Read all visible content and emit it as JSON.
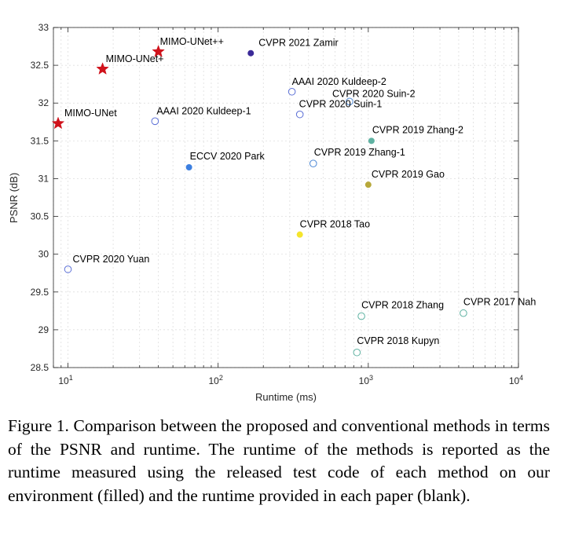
{
  "chart_data": {
    "type": "scatter",
    "xlabel": "Runtime (ms)",
    "ylabel": "PSNR (dB)",
    "xscale": "log",
    "xlim": [
      8,
      10000
    ],
    "ylim": [
      28.5,
      33
    ],
    "yticks": [
      "28.5",
      "29",
      "29.5",
      "30",
      "30.5",
      "31",
      "31.5",
      "32",
      "32.5",
      "33"
    ],
    "xticks": [
      {
        "base": "10",
        "exp": "1",
        "value": 10
      },
      {
        "base": "10",
        "exp": "2",
        "value": 100
      },
      {
        "base": "10",
        "exp": "3",
        "value": 1000
      },
      {
        "base": "10",
        "exp": "4",
        "value": 10000
      }
    ],
    "grid": "minor-dashed",
    "points": [
      {
        "label": "MIMO-UNet",
        "x": 8.6,
        "y": 31.73,
        "marker": "star",
        "color": "#d0121b"
      },
      {
        "label": "MIMO-UNet+",
        "x": 17,
        "y": 32.45,
        "marker": "star",
        "color": "#d0121b"
      },
      {
        "label": "MIMO-UNet++",
        "x": 40,
        "y": 32.68,
        "marker": "star",
        "color": "#d0121b"
      },
      {
        "label": "CVPR 2021 Zamir",
        "x": 165,
        "y": 32.66,
        "marker": "filled",
        "color": "#3b2a98"
      },
      {
        "label": "AAAI 2020 Kuldeep-2",
        "x": 310,
        "y": 32.15,
        "marker": "open",
        "color": "#5b6fd6"
      },
      {
        "label": "CVPR 2020 Suin-2",
        "x": 750,
        "y": 32.02,
        "marker": "open",
        "color": "#4f8ad6"
      },
      {
        "label": "CVPR 2020 Suin-1",
        "x": 350,
        "y": 31.85,
        "marker": "open",
        "color": "#5b6fd6"
      },
      {
        "label": "AAAI 2020 Kuldeep-1",
        "x": 38,
        "y": 31.76,
        "marker": "open",
        "color": "#5b6fd6"
      },
      {
        "label": "CVPR 2019 Zhang-2",
        "x": 1050,
        "y": 31.5,
        "marker": "filled",
        "color": "#5fb2a2"
      },
      {
        "label": "ECCV 2020 Park",
        "x": 64,
        "y": 31.15,
        "marker": "filled",
        "color": "#3c7fe0"
      },
      {
        "label": "CVPR 2019 Zhang-1",
        "x": 430,
        "y": 31.2,
        "marker": "open",
        "color": "#4f8ad6"
      },
      {
        "label": "CVPR 2019 Gao",
        "x": 1000,
        "y": 30.92,
        "marker": "filled",
        "color": "#b7a83a"
      },
      {
        "label": "CVPR 2018 Tao",
        "x": 350,
        "y": 30.26,
        "marker": "filled",
        "color": "#f5e52c"
      },
      {
        "label": "CVPR 2020 Yuan",
        "x": 10,
        "y": 29.8,
        "marker": "open",
        "color": "#5b6fd6"
      },
      {
        "label": "CVPR 2018 Zhang",
        "x": 900,
        "y": 29.18,
        "marker": "open",
        "color": "#5fb2a2"
      },
      {
        "label": "CVPR 2017 Nah",
        "x": 4300,
        "y": 29.22,
        "marker": "open",
        "color": "#5fb2a2"
      },
      {
        "label": "CVPR 2018 Kupyn",
        "x": 840,
        "y": 28.7,
        "marker": "open",
        "color": "#5fb2a2"
      }
    ]
  },
  "caption": "Figure 1. Comparison between the proposed and conventional methods in terms of the PSNR and runtime. The runtime of the methods is reported as the runtime measured using the released test code of each method on our environment (filled) and the runtime provided in each paper (blank)."
}
